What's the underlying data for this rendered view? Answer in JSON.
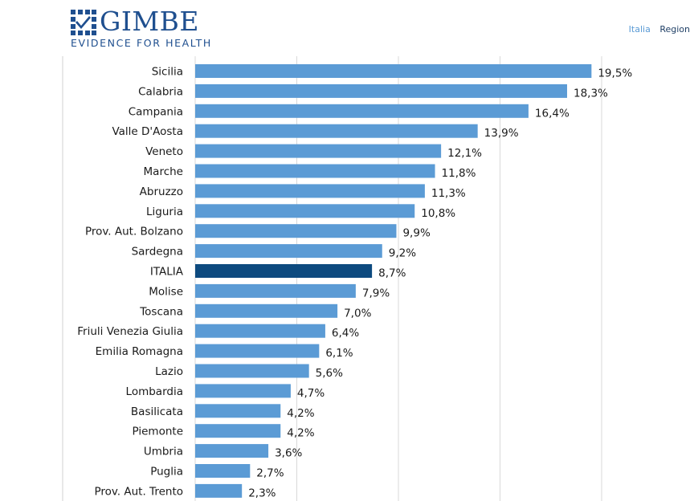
{
  "header": {
    "logo_word": "GIMBE",
    "logo_tagline": "EVIDENCE FOR HEALTH",
    "nav": [
      "Italia",
      "Region"
    ]
  },
  "colors": {
    "bar": "#5b9bd5",
    "highlight_bar": "#0d4a7f",
    "logo": "#1f4f8f",
    "grid": "#d9d9d9"
  },
  "icons": {
    "logo": "gimbe-logo-icon"
  },
  "chart_data": {
    "type": "bar",
    "orientation": "horizontal",
    "categories": [
      "Sicilia",
      "Calabria",
      "Campania",
      "Valle D'Aosta",
      "Veneto",
      "Marche",
      "Abruzzo",
      "Liguria",
      "Prov. Aut. Bolzano",
      "Sardegna",
      "ITALIA",
      "Molise",
      "Toscana",
      "Friuli Venezia Giulia",
      "Emilia Romagna",
      "Lazio",
      "Lombardia",
      "Basilicata",
      "Piemonte",
      "Umbria",
      "Puglia",
      "Prov. Aut. Trento"
    ],
    "values": [
      19.5,
      18.3,
      16.4,
      13.9,
      12.1,
      11.8,
      11.3,
      10.8,
      9.9,
      9.2,
      8.7,
      7.9,
      7.0,
      6.4,
      6.1,
      5.6,
      4.7,
      4.2,
      4.2,
      3.6,
      2.7,
      2.3
    ],
    "value_labels": [
      "19,5%",
      "18,3%",
      "16,4%",
      "13,9%",
      "12,1%",
      "11,8%",
      "11,3%",
      "10,8%",
      "9,9%",
      "9,2%",
      "8,7%",
      "7,9%",
      "7,0%",
      "6,4%",
      "6,1%",
      "5,6%",
      "4,7%",
      "4,2%",
      "4,2%",
      "3,6%",
      "2,7%",
      "2,3%"
    ],
    "highlight": "ITALIA",
    "xlim": [
      0,
      20
    ],
    "gridlines_at": [
      0,
      5,
      10,
      15,
      20
    ],
    "title": "",
    "xlabel": "",
    "ylabel": "",
    "grid": true,
    "legend": "none"
  }
}
